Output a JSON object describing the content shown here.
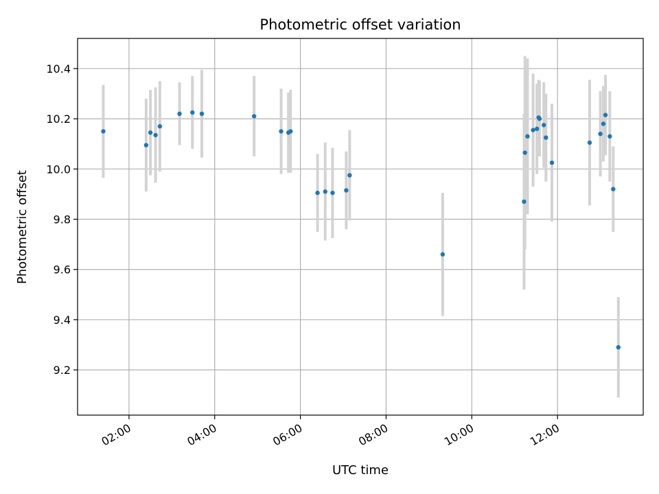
{
  "chart_data": {
    "type": "scatter",
    "title": "Photometric offset variation",
    "xlabel": "UTC time",
    "ylabel": "Photometric offset",
    "x_unit": "hours UTC",
    "xlim": [
      0.8,
      14.0
    ],
    "ylim": [
      9.02,
      10.52
    ],
    "x_ticks": [
      {
        "value": 2,
        "label": "02:00"
      },
      {
        "value": 4,
        "label": "04:00"
      },
      {
        "value": 6,
        "label": "06:00"
      },
      {
        "value": 8,
        "label": "08:00"
      },
      {
        "value": 10,
        "label": "10:00"
      },
      {
        "value": 12,
        "label": "12:00"
      }
    ],
    "y_ticks": [
      {
        "value": 9.2,
        "label": "9.2"
      },
      {
        "value": 9.4,
        "label": "9.4"
      },
      {
        "value": 9.6,
        "label": "9.6"
      },
      {
        "value": 9.8,
        "label": "9.8"
      },
      {
        "value": 10.0,
        "label": "10.0"
      },
      {
        "value": 10.2,
        "label": "10.2"
      },
      {
        "value": 10.4,
        "label": "10.4"
      }
    ],
    "grid": true,
    "colors": {
      "marker": "#1f77b4",
      "errorbar": "#d3d3d3",
      "grid": "#b0b0b0"
    },
    "series": [
      {
        "points": [
          {
            "x": 1.4,
            "y": 10.15,
            "err": 0.185
          },
          {
            "x": 2.4,
            "y": 10.095,
            "err": 0.185
          },
          {
            "x": 2.5,
            "y": 10.145,
            "err": 0.17
          },
          {
            "x": 2.62,
            "y": 10.135,
            "err": 0.19
          },
          {
            "x": 2.72,
            "y": 10.17,
            "err": 0.18
          },
          {
            "x": 3.18,
            "y": 10.22,
            "err": 0.125
          },
          {
            "x": 3.48,
            "y": 10.225,
            "err": 0.145
          },
          {
            "x": 3.7,
            "y": 10.22,
            "err": 0.175
          },
          {
            "x": 4.92,
            "y": 10.21,
            "err": 0.16
          },
          {
            "x": 5.55,
            "y": 10.15,
            "err": 0.17
          },
          {
            "x": 5.72,
            "y": 10.145,
            "err": 0.16
          },
          {
            "x": 5.77,
            "y": 10.15,
            "err": 0.165
          },
          {
            "x": 6.4,
            "y": 9.905,
            "err": 0.155
          },
          {
            "x": 6.58,
            "y": 9.91,
            "err": 0.195
          },
          {
            "x": 6.75,
            "y": 9.905,
            "err": 0.18
          },
          {
            "x": 7.07,
            "y": 9.915,
            "err": 0.155
          },
          {
            "x": 7.15,
            "y": 9.975,
            "err": 0.18
          },
          {
            "x": 9.32,
            "y": 9.66,
            "err": 0.245
          },
          {
            "x": 11.22,
            "y": 9.87,
            "err": 0.35
          },
          {
            "x": 11.24,
            "y": 10.065,
            "err": 0.385
          },
          {
            "x": 11.3,
            "y": 10.13,
            "err": 0.31
          },
          {
            "x": 11.43,
            "y": 10.155,
            "err": 0.225
          },
          {
            "x": 11.52,
            "y": 10.16,
            "err": 0.18
          },
          {
            "x": 11.56,
            "y": 10.205,
            "err": 0.15
          },
          {
            "x": 11.58,
            "y": 10.2,
            "err": 0.15
          },
          {
            "x": 11.68,
            "y": 10.175,
            "err": 0.17
          },
          {
            "x": 11.73,
            "y": 10.125,
            "err": 0.175
          },
          {
            "x": 11.87,
            "y": 10.025,
            "err": 0.235
          },
          {
            "x": 12.75,
            "y": 10.105,
            "err": 0.25
          },
          {
            "x": 13.0,
            "y": 10.14,
            "err": 0.17
          },
          {
            "x": 13.07,
            "y": 10.18,
            "err": 0.15
          },
          {
            "x": 13.12,
            "y": 10.215,
            "err": 0.16
          },
          {
            "x": 13.22,
            "y": 10.13,
            "err": 0.18
          },
          {
            "x": 13.3,
            "y": 9.92,
            "err": 0.17
          },
          {
            "x": 13.42,
            "y": 9.29,
            "err": 0.2
          }
        ]
      }
    ]
  }
}
